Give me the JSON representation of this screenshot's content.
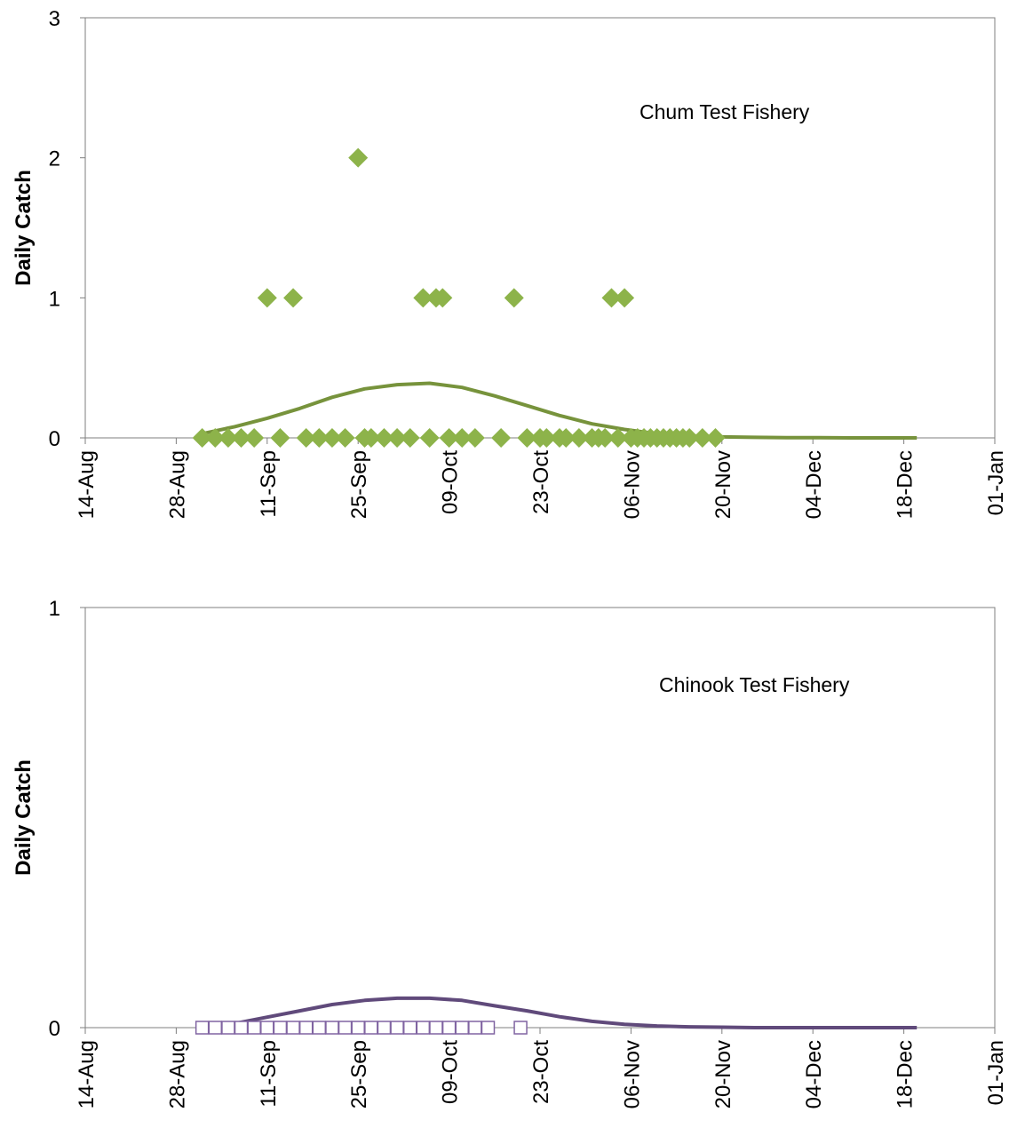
{
  "chart_data": [
    {
      "type": "scatter",
      "annotation": "Chum Test Fishery",
      "ylabel": "Daily Catch",
      "xlabel": "",
      "xlim": [
        "2011-08-14",
        "2012-01-01"
      ],
      "ylim": [
        0,
        3
      ],
      "yticks": [
        0,
        1,
        2,
        3
      ],
      "xtick_labels": [
        "14-Aug",
        "28-Aug",
        "11-Sep",
        "25-Sep",
        "09-Oct",
        "23-Oct",
        "06-Nov",
        "20-Nov",
        "04-Dec",
        "18-Dec",
        "01-Jan"
      ],
      "grid": false,
      "colors": {
        "points": "#8db34a",
        "curve": "#77933c"
      },
      "points": {
        "marker": "diamond",
        "x": [
          "2011-09-01",
          "2011-09-03",
          "2011-09-05",
          "2011-09-07",
          "2011-09-09",
          "2011-09-11",
          "2011-09-13",
          "2011-09-15",
          "2011-09-17",
          "2011-09-19",
          "2011-09-21",
          "2011-09-23",
          "2011-09-25",
          "2011-09-26",
          "2011-09-27",
          "2011-09-29",
          "2011-10-01",
          "2011-10-03",
          "2011-10-05",
          "2011-10-06",
          "2011-10-07",
          "2011-10-08",
          "2011-10-09",
          "2011-10-11",
          "2011-10-13",
          "2011-10-17",
          "2011-10-19",
          "2011-10-21",
          "2011-10-23",
          "2011-10-24",
          "2011-10-26",
          "2011-10-27",
          "2011-10-29",
          "2011-10-31",
          "2011-11-01",
          "2011-11-02",
          "2011-11-03",
          "2011-11-04",
          "2011-11-05",
          "2011-11-06",
          "2011-11-07",
          "2011-11-08",
          "2011-11-09",
          "2011-11-10",
          "2011-11-11",
          "2011-11-12",
          "2011-11-13",
          "2011-11-14",
          "2011-11-15",
          "2011-11-17",
          "2011-11-19"
        ],
        "y": [
          0,
          0,
          0,
          0,
          0,
          1,
          0,
          1,
          0,
          0,
          0,
          0,
          2,
          0,
          0,
          0,
          0,
          0,
          1,
          0,
          1,
          1,
          0,
          0,
          0,
          0,
          1,
          0,
          0,
          0,
          0,
          0,
          0,
          0,
          0,
          0,
          1,
          0,
          1,
          0,
          0,
          0,
          0,
          0,
          0,
          0,
          0,
          0,
          0,
          0,
          0
        ]
      },
      "curve": {
        "x": [
          "2011-09-01",
          "2011-09-06",
          "2011-09-11",
          "2011-09-16",
          "2011-09-21",
          "2011-09-26",
          "2011-10-01",
          "2011-10-06",
          "2011-10-11",
          "2011-10-16",
          "2011-10-21",
          "2011-10-26",
          "2011-10-31",
          "2011-11-05",
          "2011-11-10",
          "2011-11-15",
          "2011-11-20",
          "2011-11-25",
          "2011-11-30",
          "2011-12-05",
          "2011-12-10",
          "2011-12-15",
          "2011-12-20"
        ],
        "y": [
          0.03,
          0.08,
          0.14,
          0.21,
          0.29,
          0.35,
          0.38,
          0.39,
          0.36,
          0.3,
          0.23,
          0.16,
          0.1,
          0.06,
          0.03,
          0.015,
          0.007,
          0.004,
          0.002,
          0.001,
          0,
          0,
          0
        ]
      }
    },
    {
      "type": "scatter",
      "annotation": "Chinook Test Fishery",
      "ylabel": "Daily Catch",
      "xlabel": "",
      "xlim": [
        "2011-08-14",
        "2012-01-01"
      ],
      "ylim": [
        0,
        1
      ],
      "yticks": [
        0,
        1
      ],
      "xtick_labels": [
        "14-Aug",
        "28-Aug",
        "11-Sep",
        "25-Sep",
        "09-Oct",
        "23-Oct",
        "06-Nov",
        "20-Nov",
        "04-Dec",
        "18-Dec",
        "01-Jan"
      ],
      "grid": false,
      "colors": {
        "points": "#8064a2",
        "curve": "#604a7b"
      },
      "points": {
        "marker": "open-square",
        "x": [
          "2011-09-01",
          "2011-09-03",
          "2011-09-05",
          "2011-09-07",
          "2011-09-09",
          "2011-09-11",
          "2011-09-13",
          "2011-09-15",
          "2011-09-17",
          "2011-09-19",
          "2011-09-21",
          "2011-09-23",
          "2011-09-25",
          "2011-09-27",
          "2011-09-29",
          "2011-10-01",
          "2011-10-03",
          "2011-10-05",
          "2011-10-07",
          "2011-10-09",
          "2011-10-11",
          "2011-10-13",
          "2011-10-15",
          "2011-10-20"
        ],
        "y": [
          0,
          0,
          0,
          0,
          0,
          0,
          0,
          0,
          0,
          0,
          0,
          0,
          0,
          0,
          0,
          0,
          0,
          0,
          0,
          0,
          0,
          0,
          0,
          0
        ]
      },
      "curve": {
        "x": [
          "2011-09-01",
          "2011-09-06",
          "2011-09-11",
          "2011-09-16",
          "2011-09-21",
          "2011-09-26",
          "2011-10-01",
          "2011-10-06",
          "2011-10-11",
          "2011-10-16",
          "2011-10-21",
          "2011-10-26",
          "2011-10-31",
          "2011-11-05",
          "2011-11-10",
          "2011-11-15",
          "2011-11-20",
          "2011-11-25",
          "2011-11-30",
          "2011-12-05",
          "2011-12-10",
          "2011-12-15",
          "2011-12-20"
        ],
        "y": [
          0.005,
          0.01,
          0.025,
          0.04,
          0.055,
          0.065,
          0.07,
          0.07,
          0.065,
          0.052,
          0.04,
          0.026,
          0.015,
          0.008,
          0.004,
          0.002,
          0.001,
          0,
          0,
          0,
          0,
          0,
          0
        ]
      }
    }
  ]
}
